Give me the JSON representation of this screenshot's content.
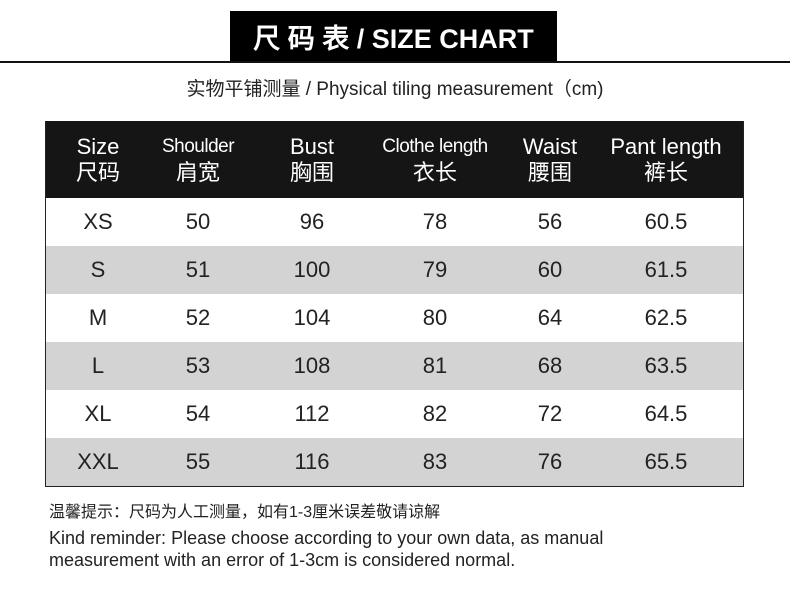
{
  "title": "尺 码 表 / SIZE CHART",
  "subtitle": "实物平铺测量 / Physical tiling measurement（cm)",
  "table": {
    "headers": [
      {
        "en": "Size",
        "zh": "尺码"
      },
      {
        "en": "Shoulder",
        "zh": "肩宽"
      },
      {
        "en": "Bust",
        "zh": "胸围"
      },
      {
        "en": "Clothe length",
        "zh": "衣长"
      },
      {
        "en": "Waist",
        "zh": "腰围"
      },
      {
        "en": "Pant length",
        "zh": "裤长"
      }
    ],
    "rows": [
      [
        "XS",
        "50",
        "96",
        "78",
        "56",
        "60.5"
      ],
      [
        "S",
        "51",
        "100",
        "79",
        "60",
        "61.5"
      ],
      [
        "M",
        "52",
        "104",
        "80",
        "64",
        "62.5"
      ],
      [
        "L",
        "53",
        "108",
        "81",
        "68",
        "63.5"
      ],
      [
        "XL",
        "54",
        "112",
        "82",
        "72",
        "64.5"
      ],
      [
        "XXL",
        "55",
        "116",
        "83",
        "76",
        "65.5"
      ]
    ]
  },
  "note_zh": "温馨提示：尺码为人工测量，如有1-3厘米误差敬请谅解",
  "note_en_label": "Kind reminder:",
  "note_en": " Please choose according to your own data, as manual measurement with an error of 1-3cm is considered normal.",
  "colors": {
    "header_bg": "#151515",
    "alt_row": "#d3d3d3"
  }
}
